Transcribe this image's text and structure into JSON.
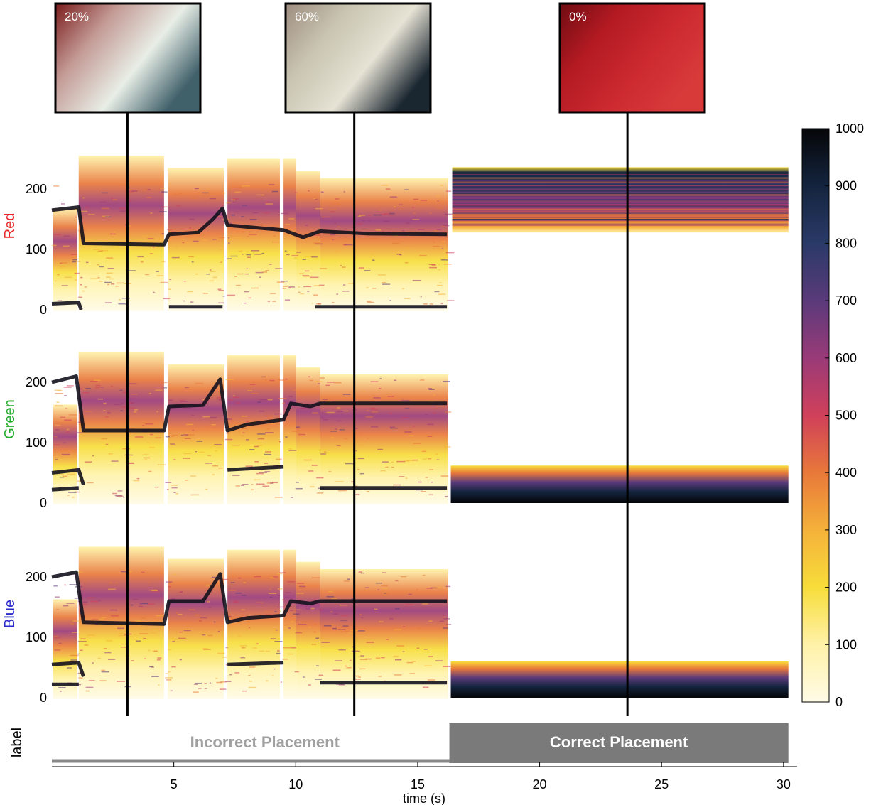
{
  "chart_data": {
    "type": "heatmap",
    "title": "",
    "xlabel": "time (s)",
    "xlim": [
      0,
      30.5
    ],
    "xticks": [
      5,
      10,
      15,
      20,
      25,
      30
    ],
    "ylim": [
      0,
      255
    ],
    "yticks": [
      0,
      100,
      200
    ],
    "colorbar": {
      "range": [
        0,
        1000
      ],
      "ticks": [
        0,
        100,
        200,
        300,
        400,
        500,
        600,
        700,
        800,
        900,
        1000
      ],
      "colormap": [
        "#fffbe6",
        "#fff2a8",
        "#f7dd3a",
        "#f5b13a",
        "#e8783a",
        "#d0405a",
        "#9a3a78",
        "#5a3a7a",
        "#2a3a68",
        "#14243e",
        "#050608"
      ]
    },
    "channels": [
      {
        "name": "Red",
        "color": "#e8262a"
      },
      {
        "name": "Green",
        "color": "#1faa2a"
      },
      {
        "name": "Blue",
        "color": "#2a2acc"
      }
    ],
    "transition_time": 16.3,
    "snapshots": [
      {
        "time": 3.1,
        "label": "20%",
        "fill": [
          "#7a1c1c",
          "#c49b96",
          "#e8eee6",
          "#40606a"
        ]
      },
      {
        "time": 12.4,
        "label": "60%",
        "fill": [
          "#9e8c80",
          "#c8c4b0",
          "#e6e2d4",
          "#1a2630"
        ]
      },
      {
        "time": 23.6,
        "label": "0%",
        "fill": [
          "#6e0c12",
          "#b41a22",
          "#cc2a30",
          "#d83a3a"
        ]
      }
    ],
    "label_track": {
      "axis_label": "label",
      "segments": [
        {
          "text": "Incorrect Placement",
          "start": 0,
          "end": 16.3,
          "state": "low"
        },
        {
          "text": "Correct Placement",
          "start": 16.3,
          "end": 30.2,
          "state": "high"
        }
      ]
    }
  },
  "colors": {
    "track_gray": "#888888",
    "label_gray_dark": "#7a7a7a",
    "label_text_light": "#a0a0a0",
    "label_text_white": "#ffffff"
  }
}
